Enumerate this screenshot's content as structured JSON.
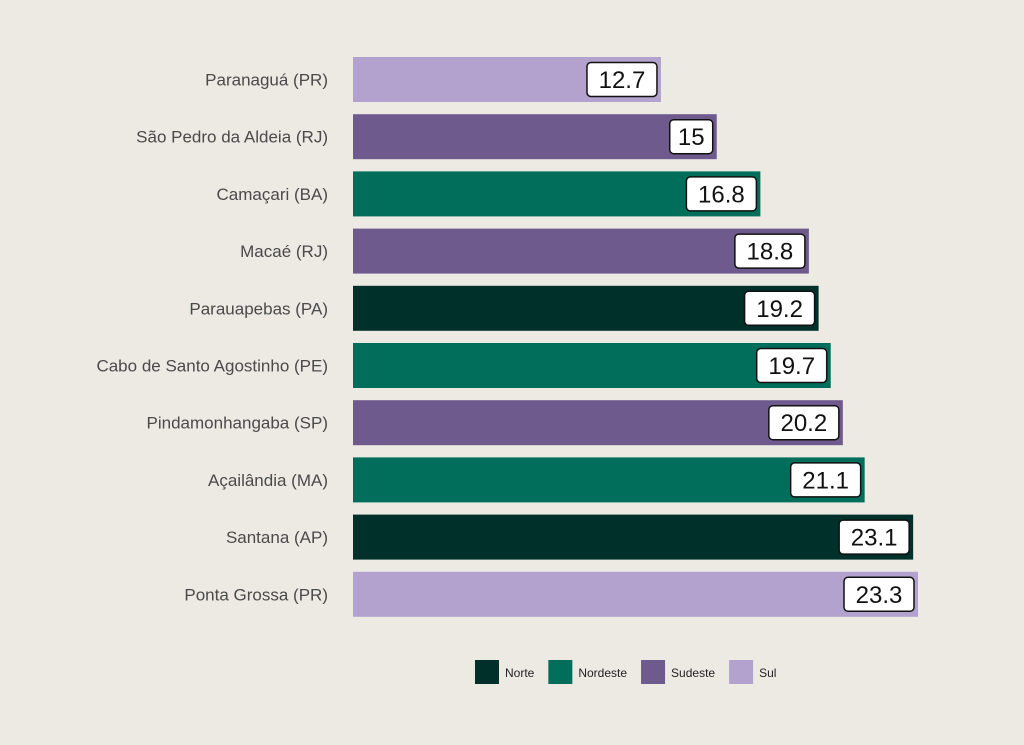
{
  "chart_data": {
    "type": "bar",
    "orientation": "horizontal",
    "categories": [
      "Paranaguá (PR)",
      "São Pedro da Aldeia (RJ)",
      "Camaçari (BA)",
      "Macaé (RJ)",
      "Parauapebas (PA)",
      "Cabo de Santo Agostinho (PE)",
      "Pindamonhangaba (SP)",
      "Açailândia (MA)",
      "Santana (AP)",
      "Ponta Grossa (PR)"
    ],
    "values": [
      12.7,
      15,
      16.8,
      18.8,
      19.2,
      19.7,
      20.2,
      21.1,
      23.1,
      23.3
    ],
    "value_labels": [
      "12.7",
      "15",
      "16.8",
      "18.8",
      "19.2",
      "19.7",
      "20.2",
      "21.1",
      "23.1",
      "23.3"
    ],
    "regions": [
      "Sul",
      "Sudeste",
      "Nordeste",
      "Sudeste",
      "Norte",
      "Nordeste",
      "Sudeste",
      "Nordeste",
      "Norte",
      "Sul"
    ],
    "legend": [
      {
        "name": "Norte",
        "color": "#00302a"
      },
      {
        "name": "Nordeste",
        "color": "#006e5a"
      },
      {
        "name": "Sudeste",
        "color": "#6e5a8c"
      },
      {
        "name": "Sul",
        "color": "#b3a2cd"
      }
    ],
    "legend_position": "bottom-right",
    "xlim": [
      0,
      23.3
    ],
    "grid": false,
    "title": "",
    "xlabel": "",
    "ylabel": ""
  },
  "colors": {
    "background": "#edeae3",
    "category_label": "#4a4a4a",
    "value_box_fill": "#ffffff",
    "value_box_stroke": "#111111"
  }
}
